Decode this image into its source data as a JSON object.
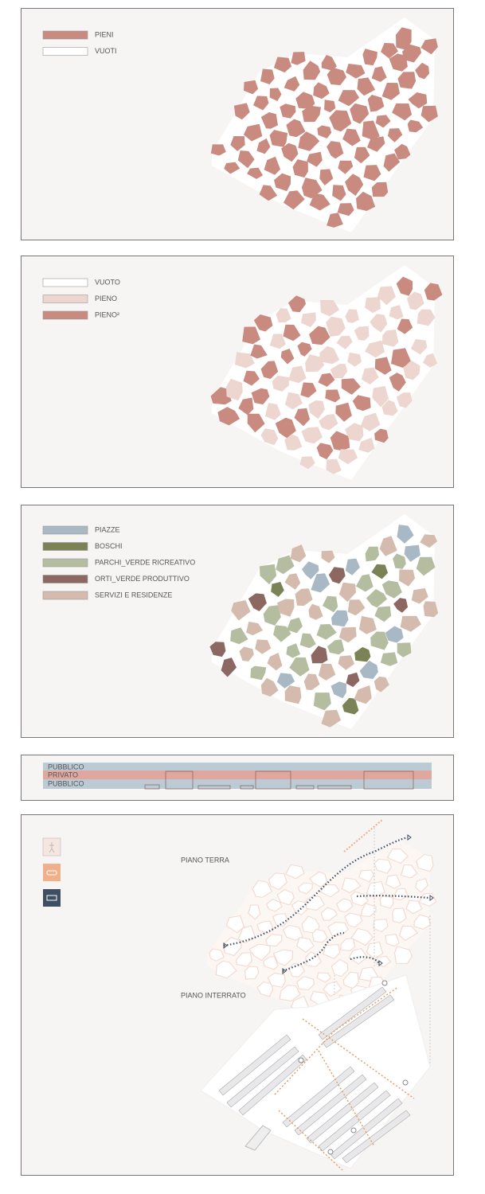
{
  "panels": [
    {
      "legend": [
        "PIENI",
        "VUOTI"
      ]
    },
    {
      "legend": [
        "VUOTO",
        "PIENO",
        "PIENO²"
      ]
    },
    {
      "legend": [
        "PIAZZE",
        "BOSCHI",
        "PARCHI_VERDE RICREATIVO",
        "ORTI_VERDE PRODUTTIVO",
        "SERVIZI E RESIDENZE"
      ]
    },
    {
      "bands": [
        "PUBBLICO",
        "PRIVATO",
        "PUBBLICO"
      ]
    },
    {
      "labels": [
        "PIANO TERRA",
        "PIANO INTERRATO"
      ]
    }
  ]
}
